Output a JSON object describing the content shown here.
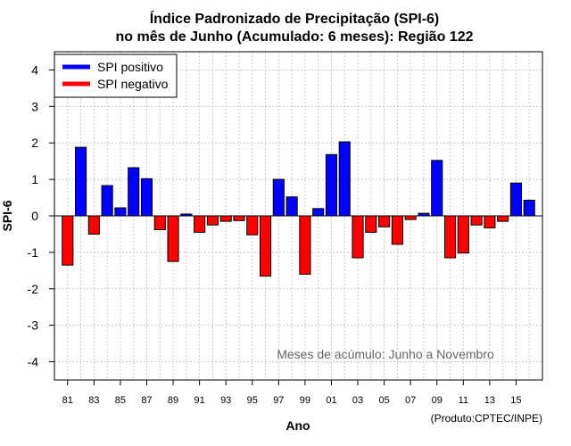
{
  "chart_data": {
    "type": "bar",
    "title": "Índice Padronizado de Precipitação (SPI-6)",
    "subtitle": "no mês de Junho (Acumulado: 6 meses): Região 122",
    "xlabel": "Ano",
    "ylabel": "SPI-6",
    "ylim": [
      -4.5,
      4.5
    ],
    "yticks": [
      "-4",
      "-3",
      "-2",
      "-1",
      "0",
      "1",
      "2",
      "3",
      "4"
    ],
    "grid": true,
    "x": [
      1981,
      1982,
      1983,
      1984,
      1985,
      1986,
      1987,
      1988,
      1989,
      1990,
      1991,
      1992,
      1993,
      1994,
      1995,
      1996,
      1997,
      1998,
      1999,
      2000,
      2001,
      2002,
      2003,
      2004,
      2005,
      2006,
      2007,
      2008,
      2009,
      2010,
      2011,
      2012,
      2013,
      2014,
      2015,
      2016
    ],
    "tick_labels": [
      "81",
      "83",
      "85",
      "87",
      "89",
      "91",
      "93",
      "95",
      "97",
      "99",
      "01",
      "03",
      "05",
      "07",
      "09",
      "11",
      "13",
      "15"
    ],
    "values": [
      -1.35,
      1.88,
      -0.5,
      0.83,
      0.22,
      1.32,
      1.02,
      -0.38,
      -1.25,
      0.05,
      -0.45,
      -0.25,
      -0.15,
      -0.13,
      -0.52,
      -1.65,
      1.0,
      0.52,
      -1.6,
      0.2,
      1.68,
      2.03,
      -1.15,
      -0.45,
      -0.3,
      -0.78,
      -0.1,
      0.07,
      1.52,
      -1.15,
      -1.02,
      -0.25,
      -0.33,
      -0.15,
      0.9,
      0.43
    ],
    "legend": {
      "position": "top-left",
      "entries": [
        {
          "name": "SPI positivo",
          "color": "#0000ff"
        },
        {
          "name": "SPI negativo",
          "color": "#ff0000"
        }
      ]
    },
    "annotation": "Meses de acúmulo: Junho a Novembro",
    "credit": "(Produto:CPTEC/INPE)"
  }
}
